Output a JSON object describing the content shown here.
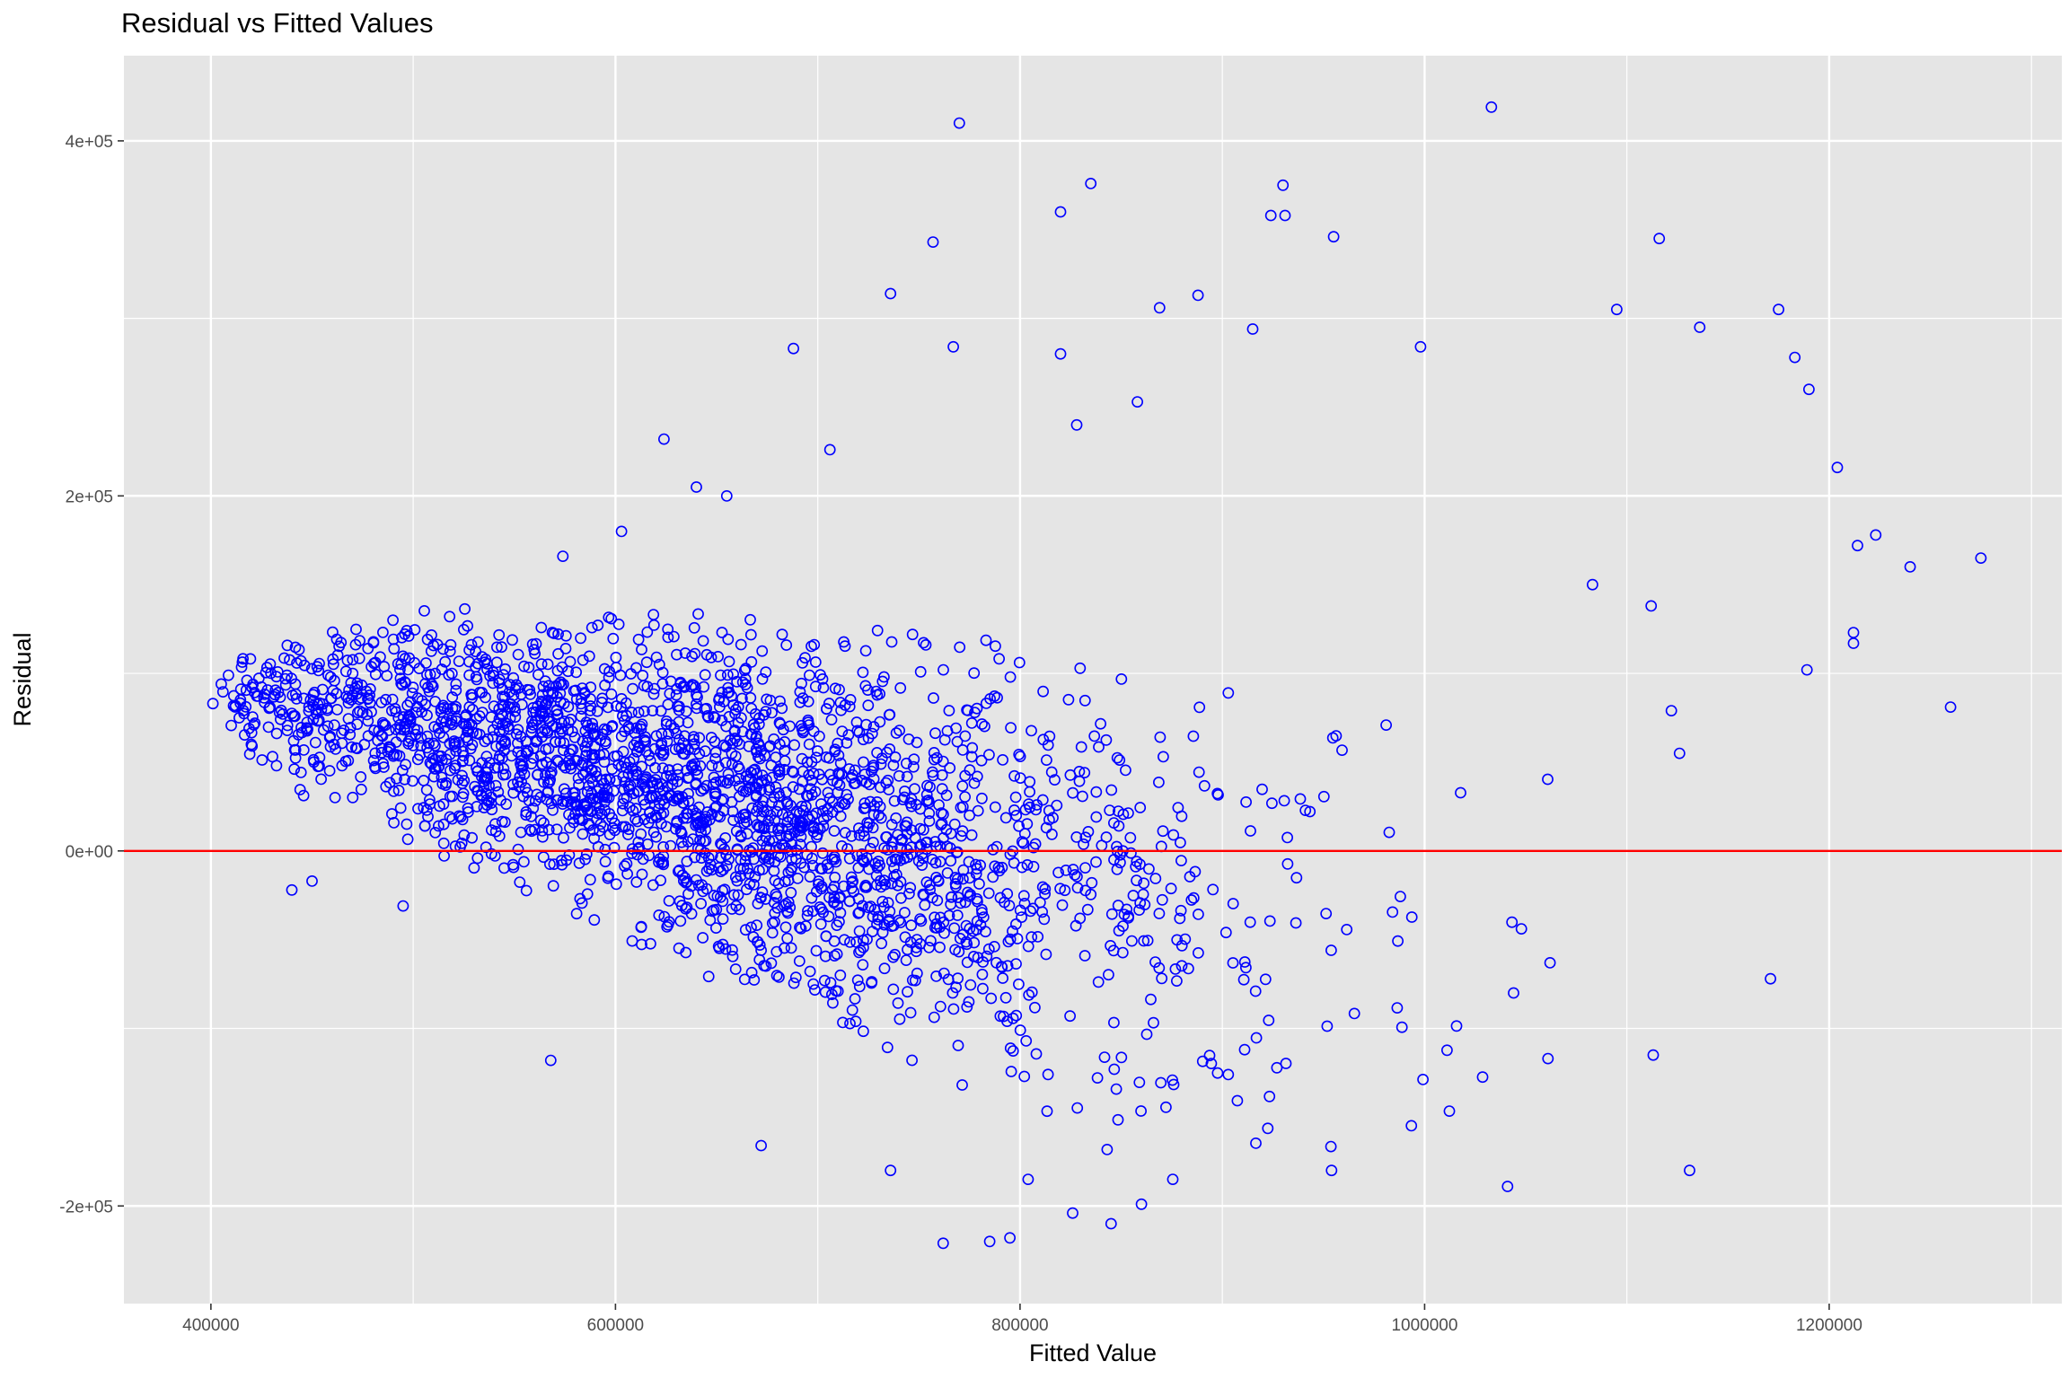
{
  "chart_data": {
    "type": "scatter",
    "title": "Residual vs Fitted Values",
    "xlabel": "Fitted Value",
    "ylabel": "Residual",
    "xlim": [
      357000,
      1315000
    ],
    "ylim": [
      -255000,
      448000
    ],
    "x_ticks": [
      400000,
      600000,
      800000,
      1000000,
      1200000
    ],
    "x_tick_labels": [
      "400000",
      "600000",
      "800000",
      "1000000",
      "1200000"
    ],
    "y_ticks": [
      -200000,
      0,
      200000,
      400000
    ],
    "y_tick_labels": [
      "-2e+05",
      "0e+00",
      "2e+05",
      "4e+05"
    ],
    "reference_line": {
      "y": 0,
      "color": "#ff0000"
    },
    "point_color": "#0000ff",
    "panel_background": "#e5e5e5",
    "grid_color": "#ffffff",
    "grid": true,
    "legend": "none",
    "named_points": [
      {
        "x": 401000,
        "y": 83000
      },
      {
        "x": 414000,
        "y": 75000
      },
      {
        "x": 420000,
        "y": 60000
      },
      {
        "x": 440000,
        "y": -22000
      },
      {
        "x": 450000,
        "y": -17000
      },
      {
        "x": 458000,
        "y": 99000
      },
      {
        "x": 490000,
        "y": 130000
      },
      {
        "x": 495000,
        "y": -31000
      },
      {
        "x": 518000,
        "y": 132000
      },
      {
        "x": 568000,
        "y": -118000
      },
      {
        "x": 574000,
        "y": 166000
      },
      {
        "x": 603000,
        "y": 180000
      },
      {
        "x": 624000,
        "y": 232000
      },
      {
        "x": 640000,
        "y": 205000
      },
      {
        "x": 655000,
        "y": 200000
      },
      {
        "x": 672000,
        "y": -166000
      },
      {
        "x": 688000,
        "y": 283000
      },
      {
        "x": 706000,
        "y": 226000
      },
      {
        "x": 736000,
        "y": 314000
      },
      {
        "x": 736000,
        "y": -180000
      },
      {
        "x": 757000,
        "y": 343000
      },
      {
        "x": 762000,
        "y": -221000
      },
      {
        "x": 767000,
        "y": 284000
      },
      {
        "x": 770000,
        "y": 410000
      },
      {
        "x": 785000,
        "y": -220000
      },
      {
        "x": 795000,
        "y": -218000
      },
      {
        "x": 804000,
        "y": -185000
      },
      {
        "x": 820000,
        "y": 360000
      },
      {
        "x": 820000,
        "y": 280000
      },
      {
        "x": 826000,
        "y": -204000
      },
      {
        "x": 828000,
        "y": 240000
      },
      {
        "x": 835000,
        "y": 376000
      },
      {
        "x": 845000,
        "y": -210000
      },
      {
        "x": 858000,
        "y": 253000
      },
      {
        "x": 860000,
        "y": -199000
      },
      {
        "x": 869000,
        "y": 306000
      },
      {
        "x": 888000,
        "y": 313000
      },
      {
        "x": 915000,
        "y": 294000
      },
      {
        "x": 924000,
        "y": 358000
      },
      {
        "x": 930000,
        "y": 375000
      },
      {
        "x": 931000,
        "y": 358000
      },
      {
        "x": 955000,
        "y": 346000
      },
      {
        "x": 954000,
        "y": -180000
      },
      {
        "x": 998000,
        "y": 284000
      },
      {
        "x": 1033000,
        "y": 419000
      },
      {
        "x": 1041000,
        "y": -189000
      },
      {
        "x": 1044000,
        "y": -80000
      },
      {
        "x": 1062000,
        "y": -63000
      },
      {
        "x": 1083000,
        "y": 150000
      },
      {
        "x": 1095000,
        "y": 305000
      },
      {
        "x": 1112000,
        "y": 138000
      },
      {
        "x": 1113000,
        "y": -115000
      },
      {
        "x": 1116000,
        "y": 345000
      },
      {
        "x": 1122000,
        "y": 79000
      },
      {
        "x": 1126000,
        "y": 55000
      },
      {
        "x": 1131000,
        "y": -180000
      },
      {
        "x": 1136000,
        "y": 295000
      },
      {
        "x": 1175000,
        "y": 305000
      },
      {
        "x": 1171000,
        "y": -72000
      },
      {
        "x": 1183000,
        "y": 278000
      },
      {
        "x": 1190000,
        "y": 260000
      },
      {
        "x": 1189000,
        "y": 102000
      },
      {
        "x": 1204000,
        "y": 216000
      },
      {
        "x": 1212000,
        "y": 123000
      },
      {
        "x": 1212000,
        "y": 117000
      },
      {
        "x": 1214000,
        "y": 172000
      },
      {
        "x": 1223000,
        "y": 178000
      },
      {
        "x": 1240000,
        "y": 160000
      },
      {
        "x": 1260000,
        "y": 81000
      },
      {
        "x": 1275000,
        "y": 165000
      }
    ],
    "cloud_point_count": 2600
  }
}
